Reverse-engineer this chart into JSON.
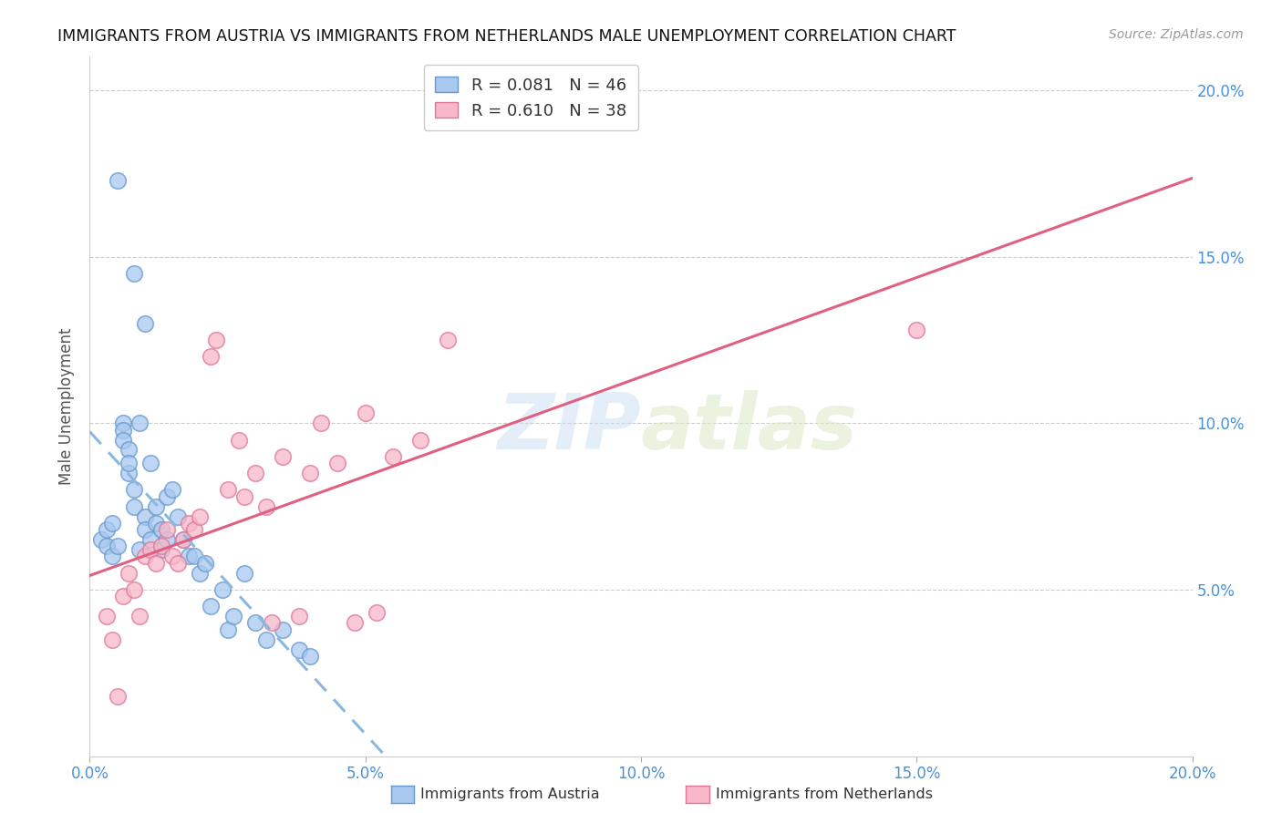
{
  "title": "IMMIGRANTS FROM AUSTRIA VS IMMIGRANTS FROM NETHERLANDS MALE UNEMPLOYMENT CORRELATION CHART",
  "source": "Source: ZipAtlas.com",
  "ylabel": "Male Unemployment",
  "xlim": [
    0.0,
    0.2
  ],
  "ylim": [
    0.0,
    0.21
  ],
  "xticks": [
    0.0,
    0.05,
    0.1,
    0.15,
    0.2
  ],
  "yticks": [
    0.05,
    0.1,
    0.15,
    0.2
  ],
  "xticklabels": [
    "0.0%",
    "5.0%",
    "10.0%",
    "15.0%",
    "20.0%"
  ],
  "yticklabels_right": [
    "5.0%",
    "10.0%",
    "15.0%",
    "20.0%"
  ],
  "austria_color": "#a8c8f0",
  "austria_edge": "#6699cc",
  "netherlands_color": "#f8b8c8",
  "netherlands_edge": "#dd7799",
  "austria_r": 0.081,
  "austria_n": 46,
  "netherlands_r": 0.61,
  "netherlands_n": 38,
  "watermark": "ZIPatlas",
  "austria_x": [
    0.002,
    0.003,
    0.003,
    0.004,
    0.004,
    0.005,
    0.005,
    0.006,
    0.006,
    0.006,
    0.007,
    0.007,
    0.007,
    0.008,
    0.008,
    0.008,
    0.009,
    0.009,
    0.01,
    0.01,
    0.01,
    0.011,
    0.011,
    0.012,
    0.012,
    0.013,
    0.013,
    0.014,
    0.014,
    0.015,
    0.016,
    0.017,
    0.018,
    0.019,
    0.02,
    0.021,
    0.022,
    0.024,
    0.025,
    0.026,
    0.028,
    0.03,
    0.032,
    0.035,
    0.038,
    0.04
  ],
  "austria_y": [
    0.065,
    0.068,
    0.063,
    0.07,
    0.06,
    0.173,
    0.063,
    0.1,
    0.098,
    0.095,
    0.085,
    0.092,
    0.088,
    0.08,
    0.075,
    0.145,
    0.1,
    0.062,
    0.072,
    0.068,
    0.13,
    0.088,
    0.065,
    0.07,
    0.075,
    0.068,
    0.062,
    0.078,
    0.065,
    0.08,
    0.072,
    0.065,
    0.06,
    0.06,
    0.055,
    0.058,
    0.045,
    0.05,
    0.038,
    0.042,
    0.055,
    0.04,
    0.035,
    0.038,
    0.032,
    0.03
  ],
  "netherlands_x": [
    0.003,
    0.004,
    0.005,
    0.006,
    0.007,
    0.008,
    0.009,
    0.01,
    0.011,
    0.012,
    0.013,
    0.014,
    0.015,
    0.016,
    0.017,
    0.018,
    0.019,
    0.02,
    0.022,
    0.023,
    0.025,
    0.027,
    0.03,
    0.032,
    0.035,
    0.04,
    0.042,
    0.045,
    0.05,
    0.055,
    0.06,
    0.065,
    0.15,
    0.028,
    0.033,
    0.038,
    0.048,
    0.052
  ],
  "netherlands_y": [
    0.042,
    0.035,
    0.018,
    0.048,
    0.055,
    0.05,
    0.042,
    0.06,
    0.062,
    0.058,
    0.063,
    0.068,
    0.06,
    0.058,
    0.065,
    0.07,
    0.068,
    0.072,
    0.12,
    0.125,
    0.08,
    0.095,
    0.085,
    0.075,
    0.09,
    0.085,
    0.1,
    0.088,
    0.103,
    0.09,
    0.095,
    0.125,
    0.128,
    0.078,
    0.04,
    0.042,
    0.04,
    0.043
  ],
  "background_color": "#ffffff",
  "grid_color": "#cccccc",
  "title_color": "#111111",
  "axis_label_color": "#4a90d9"
}
